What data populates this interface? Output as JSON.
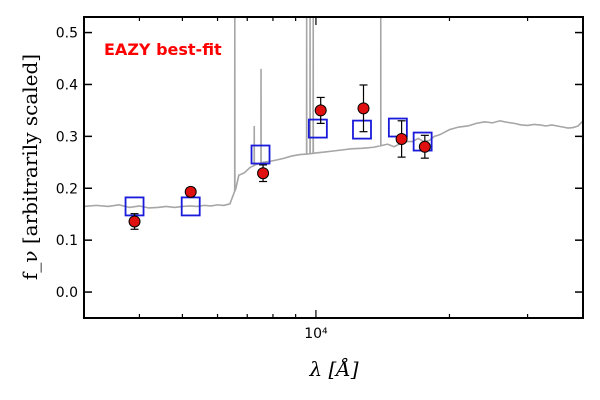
{
  "chart_data": {
    "type": "scatter",
    "title": "",
    "xlabel": "λ [Å]",
    "ylabel": "f_ν [arbitrarily scaled]",
    "xscale": "log",
    "xlim": [
      3000,
      40000
    ],
    "ylim": [
      -0.05,
      0.53
    ],
    "yticks": [
      0.0,
      0.1,
      0.2,
      0.3,
      0.4,
      0.5
    ],
    "ytick_labels": [
      "0.0",
      "0.1",
      "0.2",
      "0.3",
      "0.4",
      "0.5"
    ],
    "xtick_labels": [
      {
        "value": 10000,
        "label": "10⁴"
      }
    ],
    "annotation": {
      "text": "EAZY best-fit",
      "color": "#ff0000",
      "placement": "top-left"
    },
    "grid": false,
    "colors": {
      "template": "#a6a6a6",
      "observed_fill": "#e01010",
      "model_box": "#1a1adb",
      "errorbar": "#000000"
    },
    "template_spectrum": {
      "name": "",
      "points": [
        [
          3000,
          0.165
        ],
        [
          3200,
          0.167
        ],
        [
          3400,
          0.165
        ],
        [
          3600,
          0.168
        ],
        [
          3800,
          0.163
        ],
        [
          4000,
          0.166
        ],
        [
          4200,
          0.162
        ],
        [
          4400,
          0.163
        ],
        [
          4600,
          0.165
        ],
        [
          4800,
          0.163
        ],
        [
          5000,
          0.165
        ],
        [
          5200,
          0.166
        ],
        [
          5400,
          0.165
        ],
        [
          5600,
          0.167
        ],
        [
          5800,
          0.166
        ],
        [
          6000,
          0.168
        ],
        [
          6200,
          0.167
        ],
        [
          6400,
          0.17
        ],
        [
          6600,
          0.2
        ],
        [
          6700,
          0.225
        ],
        [
          6900,
          0.23
        ],
        [
          7100,
          0.24
        ],
        [
          7300,
          0.245
        ],
        [
          7600,
          0.25
        ],
        [
          7900,
          0.252
        ],
        [
          8200,
          0.255
        ],
        [
          8500,
          0.258
        ],
        [
          8800,
          0.262
        ],
        [
          9200,
          0.265
        ],
        [
          9600,
          0.266
        ],
        [
          10000,
          0.268
        ],
        [
          10500,
          0.27
        ],
        [
          11000,
          0.272
        ],
        [
          11500,
          0.274
        ],
        [
          12000,
          0.276
        ],
        [
          12700,
          0.277
        ],
        [
          13500,
          0.279
        ],
        [
          14000,
          0.282
        ],
        [
          14500,
          0.285
        ],
        [
          15000,
          0.28
        ],
        [
          15500,
          0.286
        ],
        [
          16000,
          0.29
        ],
        [
          16500,
          0.29
        ],
        [
          17000,
          0.296
        ],
        [
          17500,
          0.29
        ],
        [
          18000,
          0.292
        ],
        [
          18500,
          0.3
        ],
        [
          19000,
          0.303
        ],
        [
          19500,
          0.308
        ],
        [
          20000,
          0.313
        ],
        [
          21000,
          0.318
        ],
        [
          22000,
          0.32
        ],
        [
          23000,
          0.325
        ],
        [
          24000,
          0.328
        ],
        [
          25000,
          0.326
        ],
        [
          26000,
          0.33
        ],
        [
          27000,
          0.327
        ],
        [
          28000,
          0.325
        ],
        [
          29000,
          0.322
        ],
        [
          30000,
          0.321
        ],
        [
          31000,
          0.323
        ],
        [
          32000,
          0.322
        ],
        [
          33000,
          0.32
        ],
        [
          34000,
          0.322
        ],
        [
          35000,
          0.32
        ],
        [
          36000,
          0.318
        ],
        [
          37000,
          0.316
        ],
        [
          38000,
          0.317
        ],
        [
          39000,
          0.32
        ],
        [
          40000,
          0.33
        ]
      ],
      "emission_lines": [
        {
          "x": 6563,
          "peak": 0.53
        },
        {
          "x": 7260,
          "peak": 0.32
        },
        {
          "x": 7520,
          "peak": 0.43
        },
        {
          "x": 9530,
          "peak": 0.53
        },
        {
          "x": 9700,
          "peak": 0.53
        },
        {
          "x": 9860,
          "peak": 0.53
        },
        {
          "x": 14000,
          "peak": 0.53
        }
      ]
    },
    "observed_photometry": {
      "name": "",
      "points": [
        {
          "x": 3900,
          "y": 0.136,
          "err": 0.015
        },
        {
          "x": 5220,
          "y": 0.193,
          "err": 0.008
        },
        {
          "x": 7600,
          "y": 0.229,
          "err": 0.016
        },
        {
          "x": 10250,
          "y": 0.35,
          "err": 0.025
        },
        {
          "x": 12800,
          "y": 0.354,
          "err": 0.045
        },
        {
          "x": 15600,
          "y": 0.295,
          "err": 0.035
        },
        {
          "x": 17600,
          "y": 0.28,
          "err": 0.022
        }
      ]
    },
    "model_photometry": {
      "name": "",
      "points": [
        {
          "x": 3900,
          "y": 0.165
        },
        {
          "x": 5220,
          "y": 0.165
        },
        {
          "x": 7500,
          "y": 0.265
        },
        {
          "x": 10100,
          "y": 0.315
        },
        {
          "x": 12700,
          "y": 0.313
        },
        {
          "x": 15300,
          "y": 0.317
        },
        {
          "x": 17400,
          "y": 0.29
        }
      ]
    }
  }
}
